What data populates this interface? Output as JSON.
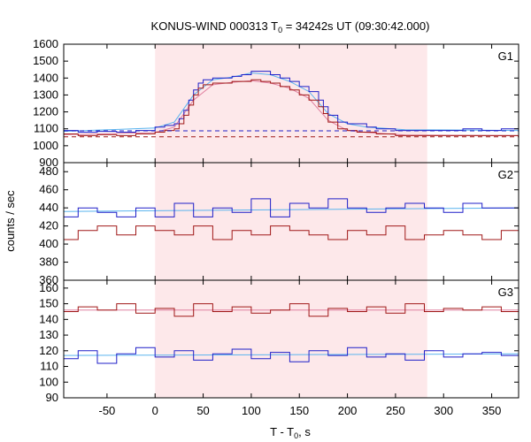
{
  "chart_data": {
    "type": "line",
    "title": {
      "prefix": "KONUS-WIND 000313 T",
      "sub": "0",
      "suffix": " = 34242s UT (09:30:42.000)"
    },
    "xlabel": {
      "prefix": "T - T",
      "sub": "0",
      "suffix": ", s"
    },
    "ylabel": "counts / sec",
    "xlim": [
      -95,
      378
    ],
    "xticks": [
      -50,
      0,
      50,
      100,
      150,
      200,
      250,
      300,
      350
    ],
    "xtick_labels": [
      "-50",
      "0",
      "50",
      "100",
      "150",
      "200",
      "250",
      "300",
      "350"
    ],
    "highlight_interval": [
      0,
      283
    ],
    "colors": {
      "highlight": "#fde8ea",
      "blue": "#1f1fc8",
      "red": "#a01818",
      "fit": "#5ab4ee",
      "fit_red": "#e080a0"
    },
    "panels": [
      {
        "label": "G1",
        "ylim": [
          900,
          1600
        ],
        "yticks": [
          900,
          1000,
          1100,
          1200,
          1300,
          1400,
          1500,
          1600
        ],
        "ytick_labels": [
          "900",
          "1000",
          "1100",
          "1200",
          "1300",
          "1400",
          "1500",
          "1600"
        ],
        "series": [
          {
            "color": "blue",
            "x": [
              -95,
              -80,
              -60,
              -40,
              -20,
              0,
              10,
              20,
              25,
              30,
              35,
              40,
              45,
              50,
              60,
              70,
              80,
              90,
              100,
              110,
              120,
              130,
              140,
              150,
              160,
              170,
              175,
              180,
              190,
              200,
              210,
              220,
              230,
              240,
              250,
              260,
              270,
              280,
              300,
              320,
              340,
              360,
              378
            ],
            "y": [
              1090,
              1080,
              1085,
              1080,
              1090,
              1110,
              1120,
              1130,
              1160,
              1210,
              1270,
              1330,
              1370,
              1390,
              1400,
              1400,
              1410,
              1420,
              1440,
              1440,
              1420,
              1400,
              1380,
              1350,
              1320,
              1270,
              1230,
              1180,
              1140,
              1130,
              1130,
              1110,
              1100,
              1100,
              1090,
              1090,
              1090,
              1090,
              1090,
              1100,
              1090,
              1100,
              1100
            ]
          },
          {
            "color": "red",
            "x": [
              -95,
              -80,
              -60,
              -40,
              -20,
              0,
              10,
              20,
              25,
              30,
              35,
              40,
              45,
              50,
              60,
              70,
              80,
              90,
              100,
              110,
              120,
              130,
              140,
              150,
              160,
              170,
              175,
              180,
              190,
              200,
              210,
              220,
              230,
              240,
              250,
              260,
              270,
              280,
              300,
              320,
              340,
              360,
              378
            ],
            "y": [
              1070,
              1060,
              1065,
              1060,
              1070,
              1080,
              1090,
              1100,
              1130,
              1180,
              1240,
              1300,
              1340,
              1360,
              1370,
              1370,
              1380,
              1380,
              1390,
              1380,
              1370,
              1350,
              1330,
              1300,
              1270,
              1230,
              1190,
              1140,
              1100,
              1090,
              1080,
              1080,
              1070,
              1070,
              1060,
              1060,
              1060,
              1060,
              1060,
              1060,
              1060,
              1060,
              1060
            ]
          }
        ],
        "baselines": [
          {
            "color": "blue",
            "y": 1088
          },
          {
            "color": "red",
            "y": 1053
          }
        ],
        "fits": [
          {
            "color": "fit",
            "x": [
              -95,
              0,
              20,
              40,
              60,
              80,
              100,
              120,
              140,
              160,
              180,
              200,
              220,
              260,
              378
            ],
            "y": [
              1085,
              1105,
              1140,
              1300,
              1390,
              1405,
              1430,
              1420,
              1380,
              1320,
              1190,
              1130,
              1110,
              1095,
              1090
            ]
          },
          {
            "color": "fit_red",
            "x": [
              -95,
              0,
              20,
              40,
              60,
              80,
              100,
              120,
              140,
              160,
              180,
              200,
              220,
              260,
              378
            ],
            "y": [
              1065,
              1078,
              1110,
              1270,
              1360,
              1375,
              1385,
              1370,
              1340,
              1280,
              1150,
              1090,
              1078,
              1063,
              1060
            ]
          }
        ]
      },
      {
        "label": "G2",
        "ylim": [
          360,
          490
        ],
        "yticks": [
          360,
          380,
          400,
          420,
          440,
          460,
          480
        ],
        "ytick_labels": [
          "360",
          "380",
          "400",
          "420",
          "440",
          "460",
          "480"
        ],
        "series": [
          {
            "color": "blue",
            "x": [
              -95,
              -80,
              -60,
              -40,
              -20,
              0,
              20,
              40,
              60,
              80,
              100,
              120,
              140,
              160,
              180,
              200,
              220,
              240,
              260,
              280,
              300,
              320,
              340,
              360,
              378
            ],
            "y": [
              430,
              440,
              435,
              430,
              440,
              430,
              445,
              430,
              440,
              435,
              450,
              430,
              445,
              440,
              450,
              440,
              435,
              440,
              445,
              440,
              435,
              445,
              440,
              440,
              445
            ]
          },
          {
            "color": "red",
            "x": [
              -95,
              -80,
              -60,
              -40,
              -20,
              0,
              20,
              40,
              60,
              80,
              100,
              120,
              140,
              160,
              180,
              200,
              220,
              240,
              260,
              280,
              300,
              320,
              340,
              360,
              378
            ],
            "y": [
              405,
              415,
              420,
              410,
              420,
              415,
              410,
              420,
              405,
              415,
              410,
              420,
              415,
              410,
              405,
              415,
              410,
              420,
              405,
              410,
              415,
              410,
              405,
              415,
              410
            ]
          }
        ],
        "baselines": [],
        "fits": [
          {
            "color": "fit",
            "x": [
              -95,
              378
            ],
            "y": [
              436,
              440
            ]
          }
        ]
      },
      {
        "label": "G3",
        "ylim": [
          90,
          165
        ],
        "yticks": [
          90,
          100,
          110,
          120,
          130,
          140,
          150,
          160
        ],
        "ytick_labels": [
          "90",
          "100",
          "110",
          "120",
          "130",
          "140",
          "150",
          "160"
        ],
        "series": [
          {
            "color": "red",
            "x": [
              -95,
              -80,
              -60,
              -40,
              -20,
              0,
              20,
              40,
              60,
              80,
              100,
              120,
              140,
              160,
              180,
              200,
              220,
              240,
              260,
              280,
              300,
              320,
              340,
              360,
              378
            ],
            "y": [
              145,
              148,
              146,
              150,
              144,
              147,
              142,
              150,
              145,
              148,
              144,
              146,
              150,
              142,
              147,
              145,
              148,
              144,
              150,
              145,
              147,
              146,
              148,
              145,
              147
            ]
          },
          {
            "color": "blue",
            "x": [
              -95,
              -80,
              -60,
              -40,
              -20,
              0,
              20,
              40,
              60,
              80,
              100,
              120,
              140,
              160,
              180,
              200,
              220,
              240,
              260,
              280,
              300,
              320,
              340,
              360,
              378
            ],
            "y": [
              115,
              120,
              112,
              118,
              122,
              116,
              120,
              114,
              118,
              121,
              115,
              119,
              113,
              120,
              117,
              122,
              116,
              118,
              114,
              120,
              116,
              118,
              119,
              117,
              118
            ]
          }
        ],
        "baselines": [],
        "fits": [
          {
            "color": "fit",
            "x": [
              -95,
              378
            ],
            "y": [
              117,
              118
            ]
          },
          {
            "color": "fit_red",
            "x": [
              -95,
              378
            ],
            "y": [
              146,
              146
            ]
          }
        ]
      }
    ]
  }
}
